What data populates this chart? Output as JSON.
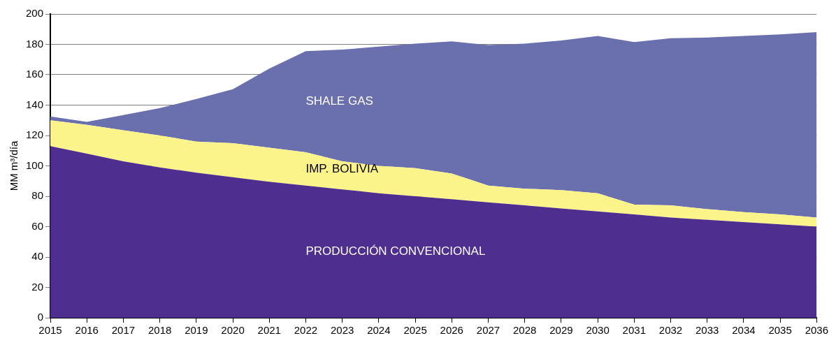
{
  "chart_data": {
    "type": "area",
    "stacked": true,
    "ylabel": "MM m³/día",
    "x": [
      2015,
      2016,
      2017,
      2018,
      2019,
      2020,
      2021,
      2022,
      2023,
      2024,
      2025,
      2026,
      2027,
      2028,
      2029,
      2030,
      2031,
      2032,
      2033,
      2034,
      2035,
      2036
    ],
    "series": [
      {
        "name": "PRODUCCIÓN CONVENCIONAL",
        "color": "#4e2e8e",
        "values": [
          113,
          108,
          103,
          99,
          95.5,
          92.5,
          89.5,
          87,
          84.5,
          82,
          80,
          78,
          76,
          74,
          72,
          70,
          68,
          66,
          64.5,
          63,
          61.5,
          60
        ]
      },
      {
        "name": "IMP. BOLIVIA",
        "color": "#fdf38b",
        "values": [
          17,
          19,
          20.5,
          21,
          20.5,
          22.5,
          22.5,
          22,
          18.5,
          18,
          18.5,
          17,
          11,
          11,
          12,
          12,
          6.5,
          8,
          7,
          6.5,
          6.5,
          6
        ]
      },
      {
        "name": "SHALE GAS",
        "color": "#6a6fad",
        "values": [
          2.5,
          2,
          10,
          18,
          28,
          35.5,
          52,
          66.5,
          73.5,
          78.5,
          82,
          87,
          92.5,
          95.5,
          98.5,
          103.5,
          107,
          110,
          113,
          116,
          118.5,
          122
        ]
      }
    ],
    "xlim": [
      2015,
      2036
    ],
    "xticks": [
      2015,
      2016,
      2017,
      2018,
      2019,
      2020,
      2021,
      2022,
      2023,
      2024,
      2025,
      2026,
      2027,
      2028,
      2029,
      2030,
      2031,
      2032,
      2033,
      2034,
      2035,
      2036
    ],
    "ylim": [
      0,
      200
    ],
    "yticks": [
      0,
      20,
      40,
      60,
      80,
      100,
      120,
      140,
      160,
      180,
      200
    ],
    "grid": "y",
    "legend": false
  }
}
